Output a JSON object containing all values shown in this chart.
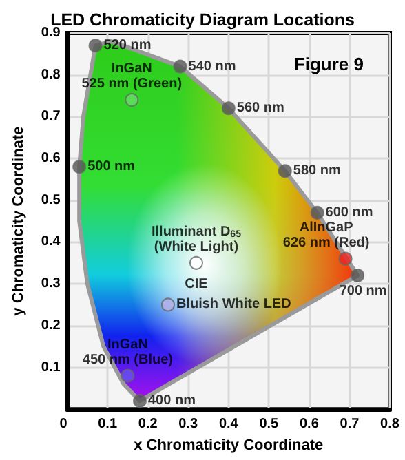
{
  "chart_data": {
    "type": "scatter",
    "title": "LED Chromaticity Diagram Locations",
    "xlabel": "x Chromaticity Coordinate",
    "ylabel": "y Chromaticity Coordinate",
    "annotations": [
      "Figure 9",
      {
        "text": "520 nm",
        "x": 0.07,
        "y": 0.87
      },
      {
        "text": "540 nm",
        "x": 0.28,
        "y": 0.82
      },
      {
        "text": "560 nm",
        "x": 0.4,
        "y": 0.72
      },
      {
        "text": "580 nm",
        "x": 0.54,
        "y": 0.57
      },
      {
        "text": "600 nm",
        "x": 0.62,
        "y": 0.47
      },
      {
        "text": "500 nm",
        "x": 0.03,
        "y": 0.58
      },
      {
        "text": "700 nm",
        "x": 0.72,
        "y": 0.32
      },
      {
        "text": "400 nm",
        "x": 0.18,
        "y": 0.02
      },
      {
        "text": "InGaN\n525 nm (Green)",
        "x": 0.16,
        "y": 0.74
      },
      {
        "text": "Illuminant D$_{65}$\n(White Light)",
        "x": 0.32,
        "y": 0.35
      },
      {
        "text": "CIE",
        "x": 0.32,
        "y": 0.35
      },
      {
        "text": "Bluish White LED",
        "x": 0.25,
        "y": 0.25
      },
      {
        "text": "InGaN\n450 nm (Blue)",
        "x": 0.15,
        "y": 0.08
      },
      {
        "text": "AlInGaP\n626 nm (Red)",
        "x": 0.69,
        "y": 0.36
      }
    ],
    "xlim": [
      0,
      0.8
    ],
    "xticks": [
      0,
      0.1,
      0.2,
      0.3,
      0.4,
      0.5,
      0.6,
      0.7,
      0.8
    ],
    "ylim": [
      0,
      0.9
    ],
    "yticks": [
      {
        "value": 0,
        "label": null
      },
      0.1,
      0.2,
      0.3,
      0.4,
      0.5,
      0.6,
      0.7,
      0.8,
      0.9
    ],
    "grid": true,
    "marker": "circle",
    "series": [
      {
        "type": "area",
        "color": "#9a9a9a",
        "marker": "none",
        "x": [
          0.18,
          0.14,
          0.09,
          0.05,
          0.03,
          0.03,
          0.04,
          0.07,
          0.11,
          0.28,
          0.4,
          0.54,
          0.62,
          0.72,
          0.18
        ],
        "values": [
          0.02,
          0.06,
          0.15,
          0.3,
          0.45,
          0.58,
          0.7,
          0.87,
          0.88,
          0.82,
          0.72,
          0.57,
          0.47,
          0.32,
          0.02
        ]
      },
      {
        "color": "#555555",
        "x": [
          0.07,
          0.28,
          0.4,
          0.54,
          0.62,
          0.03,
          0.72,
          0.18
        ],
        "values": [
          0.87,
          0.82,
          0.72,
          0.57,
          0.47,
          0.58,
          0.32,
          0.02
        ]
      },
      {
        "colors": [
          "#66dd66",
          "#ffffff",
          "#b8b0e8",
          "#6655ee",
          "#ee2222"
        ],
        "x": [
          0.16,
          0.32,
          0.25,
          0.15,
          0.69
        ],
        "values": [
          0.74,
          0.35,
          0.25,
          0.08,
          0.36
        ]
      }
    ]
  }
}
